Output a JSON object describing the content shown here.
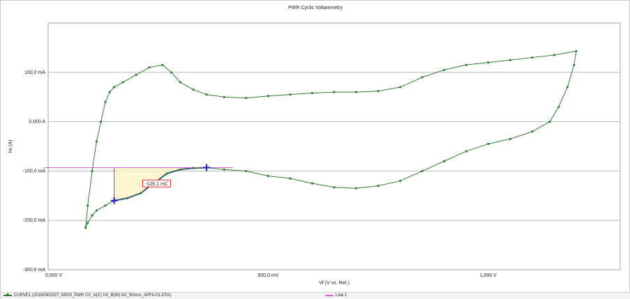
{
  "chart_data": {
    "type": "scatter",
    "title": "PWR Cyclic Voltammetry",
    "xlabel": "Vf (V vs. Ref.)",
    "ylabel": "Im (A)",
    "xlim": [
      0.0,
      1.3
    ],
    "ylim": [
      -0.3,
      0.2
    ],
    "x_units": "V",
    "y_units": "A",
    "x_ticks": [
      {
        "value": 0.0,
        "label": "0,000 V"
      },
      {
        "value": 0.5,
        "label": "500,0 mV"
      },
      {
        "value": 1.0,
        "label": "1,000 V"
      }
    ],
    "y_ticks": [
      {
        "value": 0.1,
        "label": "100,0 mA"
      },
      {
        "value": 0.0,
        "label": "0,000 A"
      },
      {
        "value": -0.1,
        "label": "-100,0 mA"
      },
      {
        "value": -0.2,
        "label": "-200,0 mA"
      },
      {
        "value": -0.3,
        "label": "-300,0 mA"
      }
    ],
    "grid": true,
    "legend_position": "bottom",
    "series": [
      {
        "name": "CURVE1 (20180302027_M003_PWR CV_A(C) H2_B(W) N2_50mvs_APFA-01.DTA)",
        "color": "#2e7d32",
        "x": [
          0.085,
          0.09,
          0.1,
          0.11,
          0.12,
          0.13,
          0.14,
          0.15,
          0.17,
          0.2,
          0.23,
          0.26,
          0.28,
          0.3,
          0.33,
          0.36,
          0.4,
          0.45,
          0.5,
          0.55,
          0.6,
          0.65,
          0.7,
          0.75,
          0.8,
          0.85,
          0.9,
          0.95,
          1.0,
          1.05,
          1.1,
          1.15,
          1.2,
          1.195,
          1.18,
          1.16,
          1.14,
          1.1,
          1.05,
          1.0,
          0.95,
          0.9,
          0.85,
          0.8,
          0.75,
          0.7,
          0.65,
          0.6,
          0.55,
          0.5,
          0.45,
          0.4,
          0.36,
          0.33,
          0.3,
          0.27,
          0.24,
          0.21,
          0.18,
          0.15,
          0.13,
          0.11,
          0.1,
          0.09,
          0.085
        ],
        "y": [
          -0.215,
          -0.17,
          -0.1,
          -0.04,
          0.0,
          0.04,
          0.06,
          0.07,
          0.08,
          0.095,
          0.11,
          0.115,
          0.1,
          0.08,
          0.065,
          0.055,
          0.05,
          0.048,
          0.052,
          0.055,
          0.058,
          0.06,
          0.06,
          0.062,
          0.07,
          0.09,
          0.105,
          0.115,
          0.12,
          0.125,
          0.13,
          0.135,
          0.143,
          0.115,
          0.07,
          0.03,
          0.0,
          -0.02,
          -0.035,
          -0.045,
          -0.06,
          -0.08,
          -0.1,
          -0.12,
          -0.13,
          -0.135,
          -0.133,
          -0.125,
          -0.115,
          -0.11,
          -0.1,
          -0.097,
          -0.093,
          -0.094,
          -0.097,
          -0.105,
          -0.125,
          -0.145,
          -0.155,
          -0.16,
          -0.17,
          -0.18,
          -0.19,
          -0.205,
          -0.215
        ]
      },
      {
        "name": "Line 1",
        "color": "#e060e0",
        "x": [
          -0.01,
          0.42
        ],
        "y": [
          -0.093,
          -0.093
        ]
      }
    ],
    "annotations": [
      {
        "type": "integral_region",
        "label": "-126,1 mC",
        "x_start": 0.15,
        "x_end": 0.36
      }
    ]
  }
}
